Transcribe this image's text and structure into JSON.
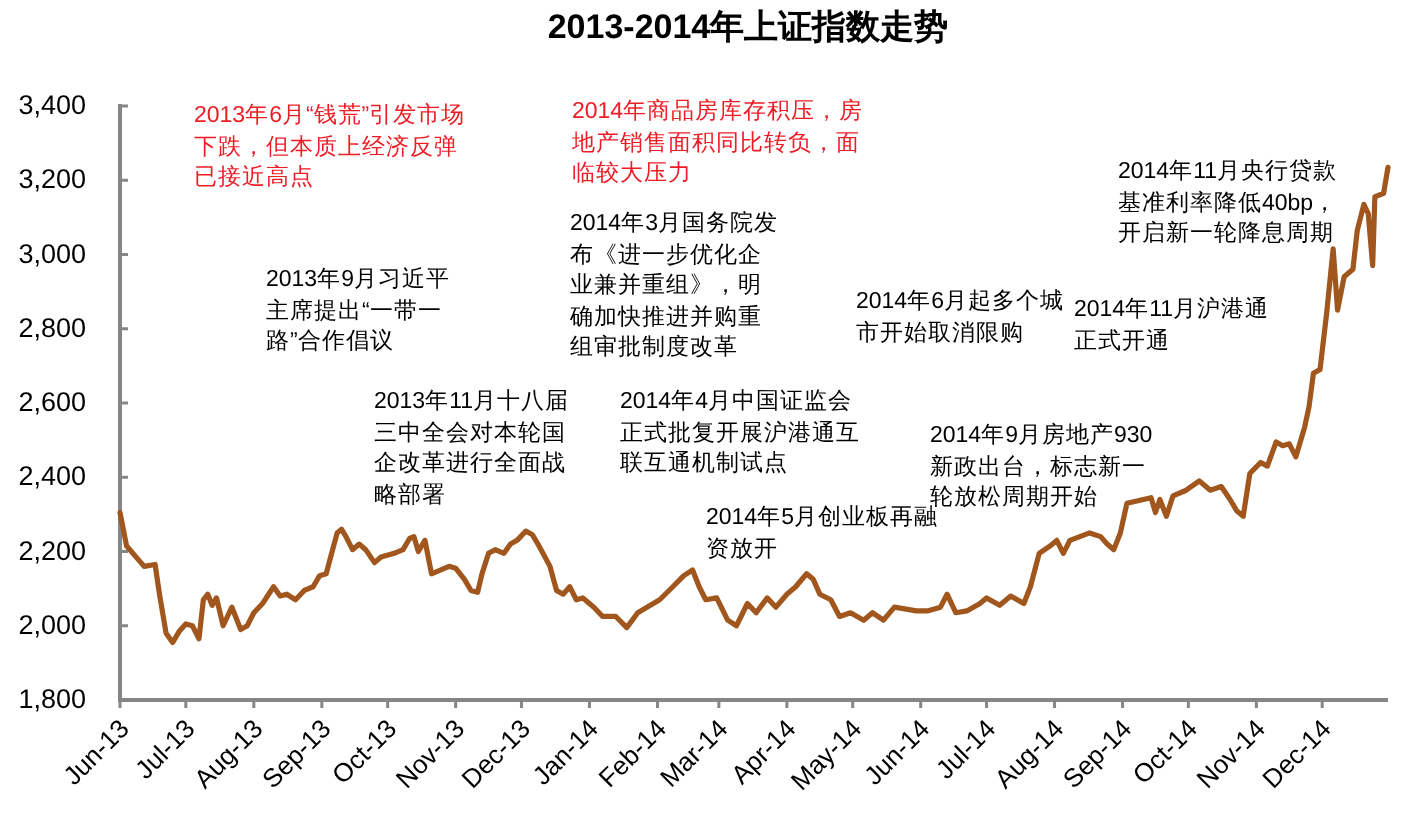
{
  "chart_data": {
    "type": "line",
    "title": "2013-2014年上证指数走势",
    "x": [
      "2013-06-01",
      "2013-06-04",
      "2013-06-12",
      "2013-06-17",
      "2013-06-19",
      "2013-06-22",
      "2013-06-25",
      "2013-06-28",
      "2013-07-01",
      "2013-07-04",
      "2013-07-07",
      "2013-07-09",
      "2013-07-11",
      "2013-07-13",
      "2013-07-15",
      "2013-07-18",
      "2013-07-22",
      "2013-07-26",
      "2013-07-29",
      "2013-08-01",
      "2013-08-05",
      "2013-08-10",
      "2013-08-13",
      "2013-08-16",
      "2013-08-20",
      "2013-08-24",
      "2013-08-28",
      "2013-08-31",
      "2013-09-03",
      "2013-09-05",
      "2013-09-08",
      "2013-09-10",
      "2013-09-12",
      "2013-09-15",
      "2013-09-18",
      "2013-09-21",
      "2013-09-25",
      "2013-09-28",
      "2013-10-04",
      "2013-10-08",
      "2013-10-11",
      "2013-10-13",
      "2013-10-15",
      "2013-10-18",
      "2013-10-21",
      "2013-10-29",
      "2013-11-01",
      "2013-11-05",
      "2013-11-08",
      "2013-11-11",
      "2013-11-13",
      "2013-11-16",
      "2013-11-19",
      "2013-11-23",
      "2013-11-26",
      "2013-11-29",
      "2013-12-03",
      "2013-12-06",
      "2013-12-09",
      "2013-12-14",
      "2013-12-17",
      "2013-12-20",
      "2013-12-23",
      "2013-12-26",
      "2013-12-29",
      "2014-01-03",
      "2014-01-07",
      "2014-01-13",
      "2014-01-18",
      "2014-01-23",
      "2014-02-02",
      "2014-02-08",
      "2014-02-13",
      "2014-02-17",
      "2014-02-20",
      "2014-02-23",
      "2014-02-28",
      "2014-03-05",
      "2014-03-09",
      "2014-03-14",
      "2014-03-18",
      "2014-03-23",
      "2014-03-27",
      "2014-04-01",
      "2014-04-05",
      "2014-04-10",
      "2014-04-13",
      "2014-04-16",
      "2014-04-21",
      "2014-04-25",
      "2014-04-30",
      "2014-05-06",
      "2014-05-10",
      "2014-05-15",
      "2014-05-20",
      "2014-05-30",
      "2014-06-04",
      "2014-06-10",
      "2014-06-13",
      "2014-06-17",
      "2014-06-22",
      "2014-06-28",
      "2014-07-01",
      "2014-07-07",
      "2014-07-12",
      "2014-07-18",
      "2014-07-21",
      "2014-07-25",
      "2014-07-30",
      "2014-08-02",
      "2014-08-05",
      "2014-08-08",
      "2014-08-17",
      "2014-08-22",
      "2014-08-25",
      "2014-08-28",
      "2014-08-31",
      "2014-09-03",
      "2014-09-14",
      "2014-09-16",
      "2014-09-18",
      "2014-09-21",
      "2014-09-24",
      "2014-09-30",
      "2014-10-06",
      "2014-10-11",
      "2014-10-16",
      "2014-10-20",
      "2014-10-23",
      "2014-10-26",
      "2014-10-29",
      "2014-11-03",
      "2014-11-06",
      "2014-11-10",
      "2014-11-13",
      "2014-11-16",
      "2014-11-19",
      "2014-11-23",
      "2014-11-25",
      "2014-11-27",
      "2014-11-30",
      "2014-12-03",
      "2014-12-06",
      "2014-12-08",
      "2014-12-11",
      "2014-12-15",
      "2014-12-17",
      "2014-12-20",
      "2014-12-22",
      "2014-12-24",
      "2014-12-25",
      "2014-12-29",
      "2014-12-31"
    ],
    "series": [
      {
        "color": "#a0561c",
        "values": [
          2305,
          2215,
          2160,
          2165,
          2085,
          1980,
          1955,
          1985,
          2005,
          2000,
          1965,
          2070,
          2085,
          2055,
          2075,
          2000,
          2050,
          1990,
          2000,
          2035,
          2060,
          2105,
          2080,
          2085,
          2070,
          2095,
          2105,
          2135,
          2140,
          2185,
          2250,
          2260,
          2240,
          2205,
          2220,
          2205,
          2170,
          2185,
          2195,
          2205,
          2235,
          2240,
          2200,
          2230,
          2140,
          2160,
          2155,
          2125,
          2095,
          2090,
          2140,
          2195,
          2205,
          2195,
          2220,
          2230,
          2255,
          2245,
          2215,
          2160,
          2095,
          2085,
          2105,
          2070,
          2075,
          2050,
          2025,
          2025,
          1995,
          2035,
          2070,
          2105,
          2135,
          2150,
          2105,
          2070,
          2075,
          2015,
          2000,
          2060,
          2035,
          2075,
          2050,
          2085,
          2105,
          2140,
          2125,
          2085,
          2070,
          2025,
          2035,
          2015,
          2035,
          2015,
          2050,
          2040,
          2040,
          2050,
          2085,
          2035,
          2040,
          2060,
          2075,
          2055,
          2080,
          2060,
          2105,
          2195,
          2215,
          2230,
          2195,
          2230,
          2250,
          2240,
          2220,
          2205,
          2250,
          2330,
          2345,
          2305,
          2340,
          2295,
          2350,
          2365,
          2390,
          2365,
          2375,
          2340,
          2310,
          2295,
          2410,
          2440,
          2430,
          2495,
          2485,
          2490,
          2455,
          2535,
          2590,
          2680,
          2690,
          2840,
          3015,
          2850,
          2940,
          2960,
          3065,
          3135,
          3110,
          2970,
          3155,
          3165,
          3235
        ]
      }
    ],
    "xlim": [
      "2013-06-01",
      "2014-12-31"
    ],
    "xticks": [
      {
        "value": "2013-06-01",
        "label": "Jun-13"
      },
      {
        "value": "2013-07-01",
        "label": "Jul-13"
      },
      {
        "value": "2013-08-01",
        "label": "Aug-13"
      },
      {
        "value": "2013-09-01",
        "label": "Sep-13"
      },
      {
        "value": "2013-10-01",
        "label": "Oct-13"
      },
      {
        "value": "2013-11-01",
        "label": "Nov-13"
      },
      {
        "value": "2013-12-01",
        "label": "Dec-13"
      },
      {
        "value": "2014-01-01",
        "label": "Jan-14"
      },
      {
        "value": "2014-02-01",
        "label": "Feb-14"
      },
      {
        "value": "2014-03-01",
        "label": "Mar-14"
      },
      {
        "value": "2014-04-01",
        "label": "Apr-14"
      },
      {
        "value": "2014-05-01",
        "label": "May-14"
      },
      {
        "value": "2014-06-01",
        "label": "Jun-14"
      },
      {
        "value": "2014-07-01",
        "label": "Jul-14"
      },
      {
        "value": "2014-08-01",
        "label": "Aug-14"
      },
      {
        "value": "2014-09-01",
        "label": "Sep-14"
      },
      {
        "value": "2014-10-01",
        "label": "Oct-14"
      },
      {
        "value": "2014-11-01",
        "label": "Nov-14"
      },
      {
        "value": "2014-12-01",
        "label": "Dec-14"
      }
    ],
    "ylim": [
      1800,
      3400
    ],
    "yticks": [
      {
        "value": 1800,
        "label": "1,800"
      },
      {
        "value": 2000,
        "label": "2,000"
      },
      {
        "value": 2200,
        "label": "2,200"
      },
      {
        "value": 2400,
        "label": "2,400"
      },
      {
        "value": 2600,
        "label": "2,600"
      },
      {
        "value": 2800,
        "label": "2,800"
      },
      {
        "value": 3000,
        "label": "3,000"
      },
      {
        "value": 3200,
        "label": "3,200"
      },
      {
        "value": 3400,
        "label": "3,400"
      }
    ],
    "annotations": [
      "2013年6月“钱荒”引发市场下跌，但本质上经济反弹已接近高点",
      "2013年9月习近平主席提出“一带一路”合作倡议",
      "2013年11月十八届三中全会对本轮国企改革进行全面战略部署",
      "2014年商品房库存积压，房地产销售面积同比转负，面临较大压力",
      "2014年3月国务院发布《进一步优化企业兼并重组》，明确加快推进并购重组审批制度改革",
      "2014年4月中国证监会正式批复开展沪港通互联互通机制试点",
      "2014年5月创业板再融资放开",
      "2014年6月起多个城市开始取消限购",
      "2014年9月房地产930新政出台，标志新一轮放松周期开始",
      "2014年11月沪港通正式开通",
      "2014年11月央行贷款基准利率降低40bp，开启新一轮降息周期"
    ]
  }
}
